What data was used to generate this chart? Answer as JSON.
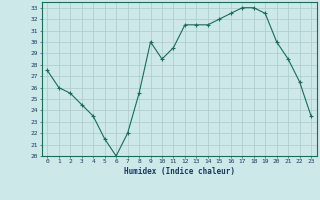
{
  "x": [
    0,
    1,
    2,
    3,
    4,
    5,
    6,
    7,
    8,
    9,
    10,
    11,
    12,
    13,
    14,
    15,
    16,
    17,
    18,
    19,
    20,
    21,
    22,
    23
  ],
  "y": [
    27.5,
    26.0,
    25.5,
    24.5,
    23.5,
    21.5,
    20.0,
    22.0,
    25.5,
    30.0,
    28.5,
    29.5,
    31.5,
    31.5,
    31.5,
    32.0,
    32.5,
    33.0,
    33.0,
    32.5,
    30.0,
    28.5,
    26.5,
    23.5
  ],
  "xlabel": "Humidex (Indice chaleur)",
  "ylim": [
    20,
    33.5
  ],
  "xlim": [
    -0.5,
    23.5
  ],
  "yticks": [
    20,
    21,
    22,
    23,
    24,
    25,
    26,
    27,
    28,
    29,
    30,
    31,
    32,
    33
  ],
  "xticks": [
    0,
    1,
    2,
    3,
    4,
    5,
    6,
    7,
    8,
    9,
    10,
    11,
    12,
    13,
    14,
    15,
    16,
    17,
    18,
    19,
    20,
    21,
    22,
    23
  ],
  "line_color": "#1a6b5a",
  "marker": "+",
  "bg_color": "#cce8e8",
  "grid_color": "#aacccc",
  "tick_label_color": "#1a3a5c",
  "xlabel_color": "#1a3a5c"
}
